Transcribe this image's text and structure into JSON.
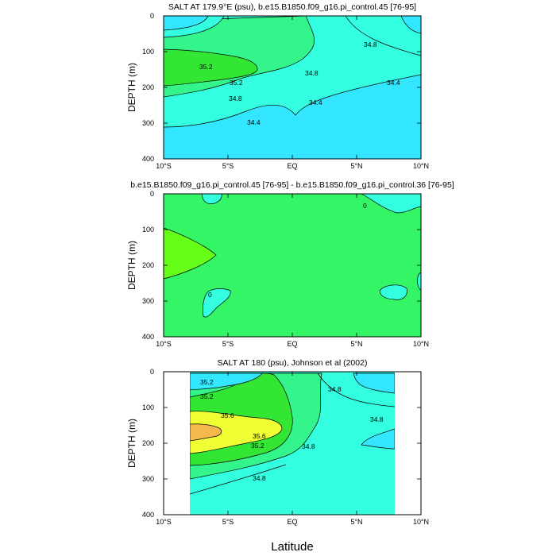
{
  "figure": {
    "xlabel": "Latitude"
  },
  "colors": {
    "lt34_4": "#33e6ff",
    "b34_4_34_8": "#33ffe0",
    "b34_8_35_2": "#33f58c",
    "b35_2_35_6": "#33e633",
    "b35_6_36": "#f0ff33",
    "gt36": "#f5b84d",
    "diff_zero": "#33f566",
    "diff_pos": "#66ff1a",
    "diff_neg": "#33ffe0"
  },
  "chart_data": [
    {
      "type": "heatmap",
      "title": "SALT AT 179.9°E (psu), b.e15.B1850.f09_g16.pi_control.45 [76-95]",
      "xlabel": "",
      "ylabel": "DEPTH (m)",
      "xlim": [
        -10,
        10
      ],
      "ylim": [
        400,
        0
      ],
      "xticks": [
        "10°S",
        "5°S",
        "EQ",
        "5°N",
        "10°N"
      ],
      "yticks": [
        "0",
        "100",
        "200",
        "300",
        "400"
      ],
      "contour_labels": [
        "34.8",
        "35.2",
        "35.2",
        "34.8",
        "34.8",
        "34.4",
        "34.4",
        "34.4"
      ]
    },
    {
      "type": "heatmap",
      "title": "b.e15.B1850.f09_g16.pi_control.45 [76-95] - b.e15.B1850.f09_g16.pi_control.36 [76-95]",
      "xlabel": "",
      "ylabel": "DEPTH (m)",
      "xlim": [
        -10,
        10
      ],
      "ylim": [
        400,
        0
      ],
      "xticks": [
        "10°S",
        "5°S",
        "EQ",
        "5°N",
        "10°N"
      ],
      "yticks": [
        "0",
        "100",
        "200",
        "300",
        "400"
      ],
      "contour_labels": [
        "0",
        "0"
      ]
    },
    {
      "type": "heatmap",
      "title": "SALT AT 180 (psu), Johnson et al (2002)",
      "xlabel": "",
      "ylabel": "DEPTH (m)",
      "xlim": [
        -10,
        10
      ],
      "ylim": [
        400,
        0
      ],
      "xticks": [
        "10°S",
        "5°S",
        "EQ",
        "5°N",
        "10°N"
      ],
      "yticks": [
        "0",
        "100",
        "200",
        "300",
        "400"
      ],
      "contour_labels": [
        "35.2",
        "35.2",
        "34.8",
        "35.6",
        "35.6",
        "35.2",
        "34.8",
        "34.8",
        "34.8"
      ]
    }
  ]
}
